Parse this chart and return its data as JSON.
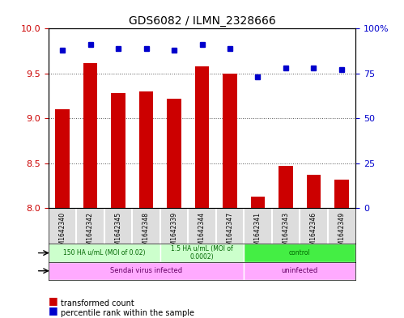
{
  "title": "GDS6082 / ILMN_2328666",
  "samples": [
    "GSM1642340",
    "GSM1642342",
    "GSM1642345",
    "GSM1642348",
    "GSM1642339",
    "GSM1642344",
    "GSM1642347",
    "GSM1642341",
    "GSM1642343",
    "GSM1642346",
    "GSM1642349"
  ],
  "bar_values": [
    9.1,
    9.62,
    9.28,
    9.3,
    9.22,
    9.58,
    9.5,
    8.13,
    8.47,
    8.37,
    8.32
  ],
  "dot_values": [
    88,
    91,
    89,
    89,
    88,
    91,
    89,
    73,
    78,
    78,
    77
  ],
  "ylim_left": [
    8,
    10
  ],
  "ylim_right": [
    0,
    100
  ],
  "yticks_left": [
    8,
    8.5,
    9,
    9.5,
    10
  ],
  "yticks_right": [
    0,
    25,
    50,
    75,
    100
  ],
  "bar_color": "#cc0000",
  "dot_color": "#0000cc",
  "bar_bottom": 8,
  "dose_groups": [
    {
      "label": "150 HA u/mL (MOI of 0.02)",
      "start": 0,
      "end": 4,
      "color": "#ccffcc"
    },
    {
      "label": "1.5 HA u/mL (MOI of\n0.0002)",
      "start": 4,
      "end": 7,
      "color": "#ccffcc"
    },
    {
      "label": "control",
      "start": 7,
      "end": 11,
      "color": "#44ee44"
    }
  ],
  "infection_groups": [
    {
      "label": "Sendai virus infected",
      "start": 0,
      "end": 7,
      "color": "#ffaaff"
    },
    {
      "label": "uninfected",
      "start": 7,
      "end": 11,
      "color": "#ffaaff"
    }
  ],
  "dose_label_color": "#006600",
  "infection_label_color": "#660066",
  "tick_color_left": "#cc0000",
  "tick_color_right": "#0000cc",
  "background_color": "#ffffff",
  "plot_bg": "#ffffff",
  "dotted_line_color": "#555555"
}
